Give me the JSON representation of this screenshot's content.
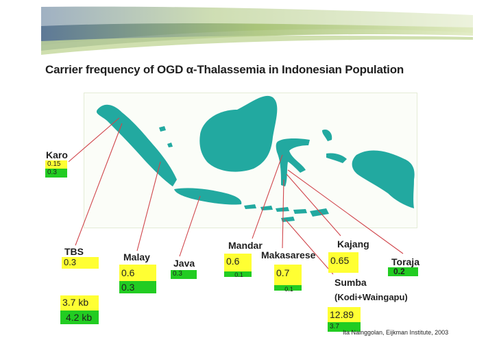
{
  "slide": {
    "title": "Carrier frequency of OGD α-Thalassemia in Indonesian Population",
    "credit": "Ita Nainggolan, Eijkman Institute, 2003"
  },
  "colors": {
    "yellow": "#ffff33",
    "green": "#22cc22",
    "land": "#22a9a0",
    "line": "#d0444a"
  },
  "populations": {
    "karo": {
      "name": "Karo",
      "v1": "0.15",
      "v2": "0.3"
    },
    "tbs": {
      "name": "TBS",
      "v1": "0.3"
    },
    "malay": {
      "name": "Malay",
      "v1": "0.6",
      "v2": "0.3"
    },
    "java": {
      "name": "Java",
      "v1": "0.3"
    },
    "mandar": {
      "name": "Mandar",
      "v1": "0.6",
      "v2": "0.1"
    },
    "makasarese": {
      "name": "Makasarese",
      "v1": "0.7",
      "v2": "0.1"
    },
    "kajang": {
      "name": "Kajang",
      "v1": "0.65"
    },
    "toraja": {
      "name": "Toraja",
      "v1": "0.2"
    },
    "sumba": {
      "name": "Sumba",
      "sub": "(Kodi+Waingapu)",
      "v1": "12.89",
      "v2": "3.7"
    }
  },
  "deletions": {
    "a": "3.7 kb",
    "b": "4.2 kb"
  }
}
